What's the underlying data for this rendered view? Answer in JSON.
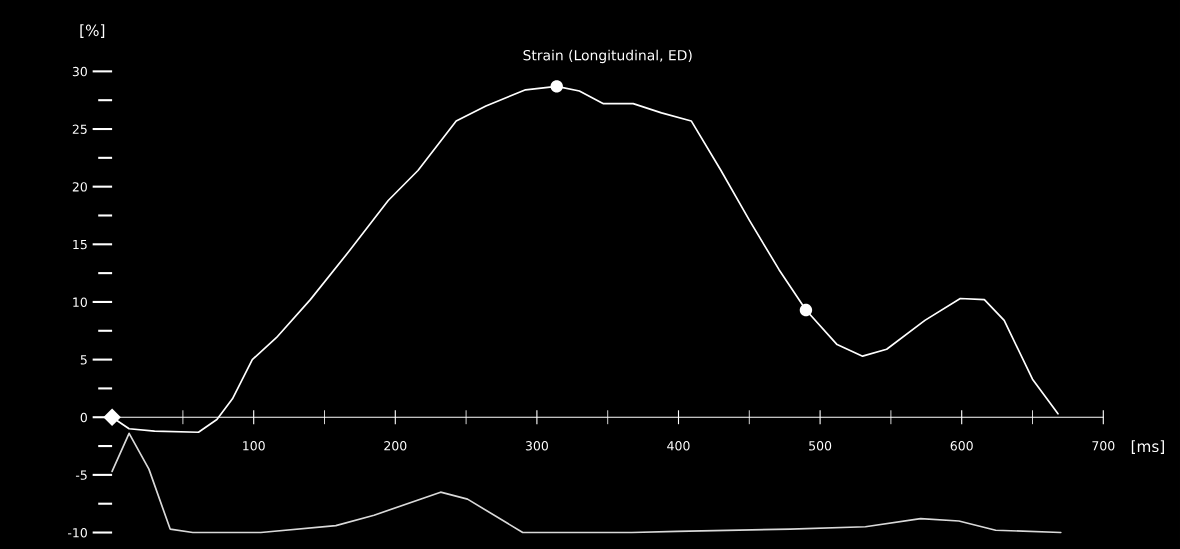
{
  "chart_data": {
    "type": "line",
    "title": "Strain (Longitudinal, ED)",
    "xlabel": "[ms]",
    "ylabel": "[%]",
    "xlim": [
      0,
      700
    ],
    "ylim": [
      -10,
      30
    ],
    "xticks": [
      {
        "value": 50,
        "label": null
      },
      100,
      {
        "value": 150,
        "label": null
      },
      200,
      {
        "value": 250,
        "label": null
      },
      300,
      {
        "value": 350,
        "label": null
      },
      400,
      {
        "value": 450,
        "label": null
      },
      500,
      {
        "value": 550,
        "label": null
      },
      600,
      {
        "value": 650,
        "label": null
      },
      700
    ],
    "yticks": [
      -10,
      {
        "value": -7.5,
        "label": null
      },
      -5,
      {
        "value": -2.5,
        "label": null
      },
      0,
      {
        "value": 2.5,
        "label": null
      },
      5,
      {
        "value": 7.5,
        "label": null
      },
      10,
      {
        "value": 12.5,
        "label": null
      },
      15,
      {
        "value": 17.5,
        "label": null
      },
      20,
      {
        "value": 22.5,
        "label": null
      },
      25,
      {
        "value": 27.5,
        "label": null
      },
      30
    ],
    "series": [
      {
        "color": "#ffffff",
        "x": [
          0,
          12,
          30,
          61,
          74,
          85,
          99,
          116,
          140,
          168,
          195,
          216,
          243,
          264,
          292,
          314,
          330,
          347,
          368,
          388,
          409,
          430,
          450,
          471,
          490,
          512,
          530,
          547,
          574,
          599,
          616,
          630,
          650,
          668
        ],
        "values": [
          0,
          -1,
          -1.2,
          -1.3,
          -0.2,
          1.6,
          5,
          6.9,
          10.2,
          14.5,
          18.8,
          21.4,
          25.7,
          27,
          28.4,
          28.7,
          28.3,
          27.2,
          27.2,
          26.4,
          25.7,
          21.4,
          17.1,
          12.8,
          9.3,
          6.3,
          5.3,
          5.9,
          8.4,
          10.3,
          10.2,
          8.4,
          3.3,
          0.3
        ]
      },
      {
        "color": "#d9d9d9",
        "x": [
          0,
          12,
          26,
          41,
          57,
          105,
          158,
          185,
          232,
          251,
          290,
          367,
          399,
          479,
          532,
          571,
          598,
          624,
          670
        ],
        "values": [
          -4.7,
          -1.4,
          -4.5,
          -9.7,
          -10,
          -10,
          -9.4,
          -8.5,
          -6.5,
          -7.1,
          -10,
          -10,
          -9.9,
          -9.7,
          -9.5,
          -8.8,
          -9,
          -9.8,
          -10
        ]
      },
      {
        "type": "scatter",
        "color": "#ffffff",
        "marker": "diamond",
        "x": [
          0
        ],
        "values": [
          0
        ]
      },
      {
        "type": "scatter",
        "color": "#ffffff",
        "marker": "circle",
        "x": [
          314,
          490
        ],
        "values": [
          28.7,
          9.3
        ]
      }
    ]
  }
}
